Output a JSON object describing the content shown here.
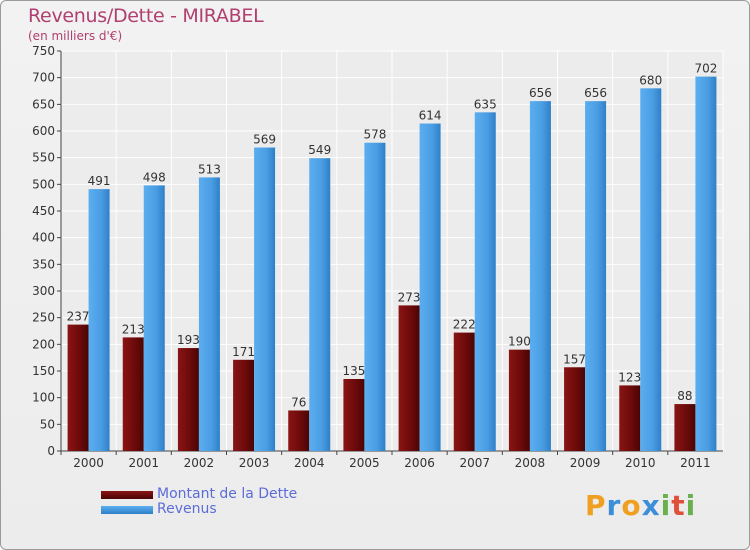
{
  "chart_data": {
    "type": "bar",
    "title": "Revenus/Dette - MIRABEL",
    "subtitle": "(en milliers d'€)",
    "categories": [
      "2000",
      "2001",
      "2002",
      "2003",
      "2004",
      "2005",
      "2006",
      "2007",
      "2008",
      "2009",
      "2010",
      "2011"
    ],
    "series": [
      {
        "name": "Montant de la Dette",
        "color": "#6b0a0a",
        "values": [
          237,
          213,
          193,
          171,
          76,
          135,
          273,
          222,
          190,
          157,
          123,
          88
        ]
      },
      {
        "name": "Revenus",
        "color": "#4a9de2",
        "values": [
          491,
          498,
          513,
          569,
          549,
          578,
          614,
          635,
          656,
          656,
          680,
          702
        ]
      }
    ],
    "ylim": [
      0,
      750
    ],
    "yticks": [
      0,
      50,
      100,
      150,
      200,
      250,
      300,
      350,
      400,
      450,
      500,
      550,
      600,
      650,
      700,
      750
    ],
    "grid": true,
    "legend_position": "bottom-left"
  },
  "logo": {
    "letters": [
      "P",
      "r",
      "o",
      "x",
      "i",
      "t",
      "i"
    ],
    "colors": [
      "#f0a020",
      "#3d8ed9",
      "#f0a020",
      "#3d8ed9",
      "#6ab04c",
      "#e04f3a",
      "#6ab04c"
    ]
  }
}
